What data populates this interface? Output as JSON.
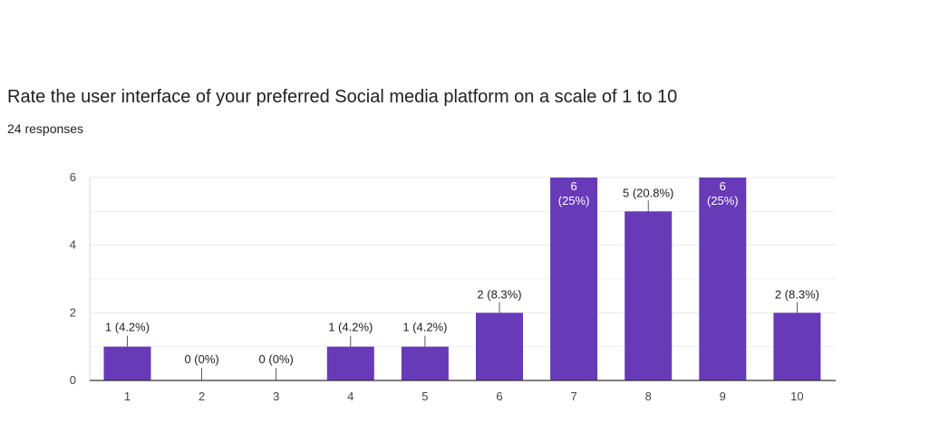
{
  "header": {
    "title": "Rate the user interface of your preferred Social media platform on a scale of 1 to 10",
    "responses": "24 responses"
  },
  "colors": {
    "bar": "#673ab7",
    "grid": "#e8e8e8",
    "axis": "#333333",
    "label_outside": "#202124",
    "label_inside": "#ffffff"
  },
  "chart_data": {
    "type": "bar",
    "categories": [
      "1",
      "2",
      "3",
      "4",
      "5",
      "6",
      "7",
      "8",
      "9",
      "10"
    ],
    "values": [
      1,
      0,
      0,
      1,
      1,
      2,
      6,
      5,
      6,
      2
    ],
    "percents": [
      "4.2%",
      "0%",
      "0%",
      "4.2%",
      "4.2%",
      "8.3%",
      "25%",
      "20.8%",
      "25%",
      "8.3%"
    ],
    "data_labels": [
      "1 (4.2%)",
      "0 (0%)",
      "0 (0%)",
      "1 (4.2%)",
      "1 (4.2%)",
      "2 (8.3%)",
      "6 (25%)",
      "5 (20.8%)",
      "6 (25%)",
      "2 (8.3%)"
    ],
    "yticks": [
      0,
      2,
      4,
      6
    ],
    "ylim": [
      0,
      6
    ],
    "grid": true,
    "xlabel": "",
    "ylabel": ""
  }
}
